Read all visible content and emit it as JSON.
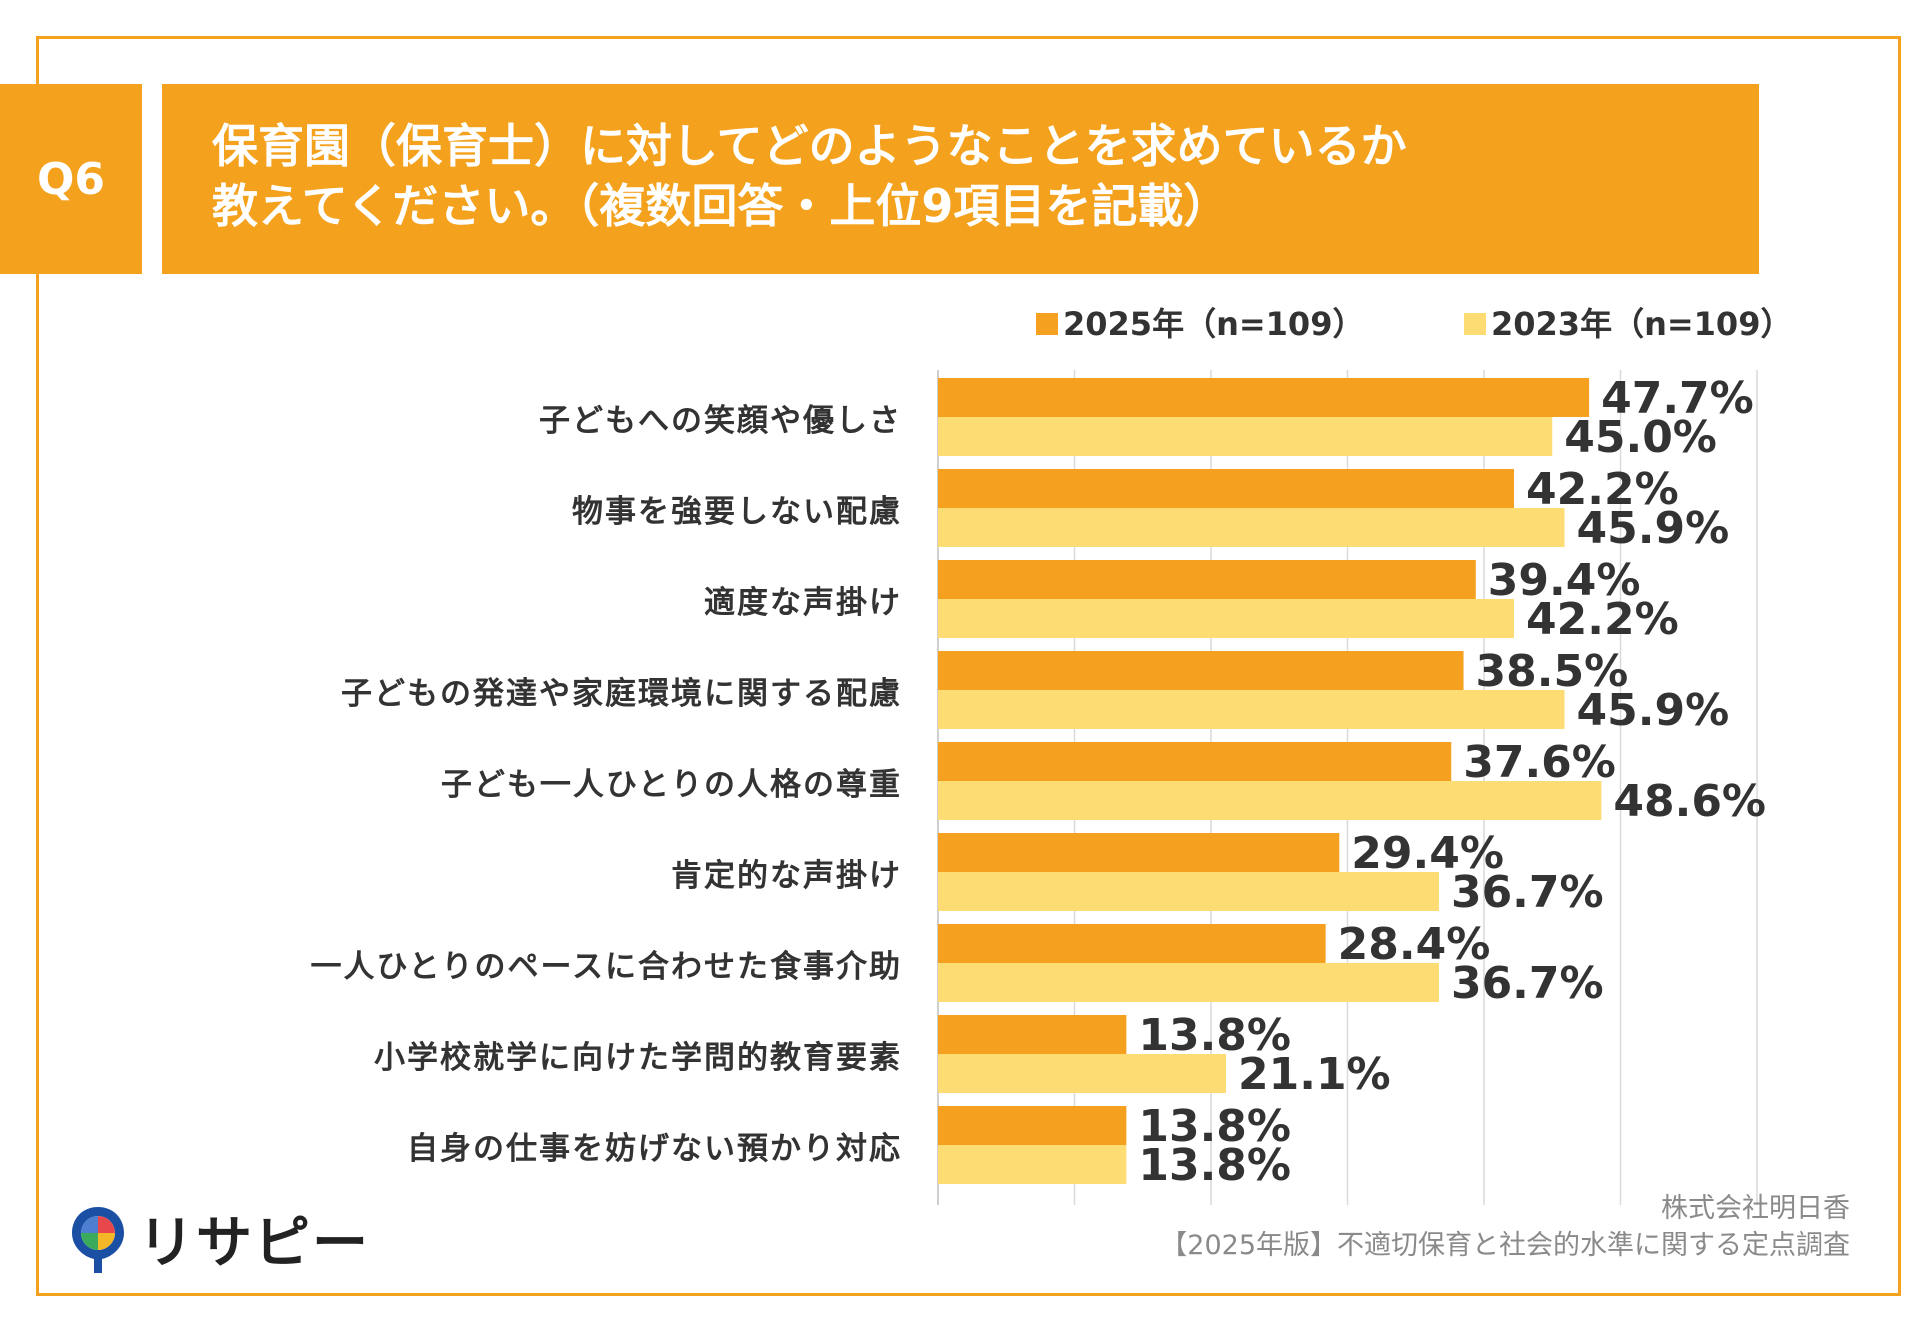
{
  "header": {
    "q_label": "Q6",
    "title_line1": "保育園（保育士）に対してどのようなことを求めているか",
    "title_line2": "教えてください。（複数回答・上位9項目を記載）"
  },
  "colors": {
    "accent": "#F4A21E",
    "series_2025": "#F5A11F",
    "series_2023": "#FDDD73",
    "grid": "#d9d9d9"
  },
  "chart_data": {
    "type": "bar",
    "orientation": "horizontal",
    "title": "保育園（保育士）に対してどのようなことを求めているか教えてください。（複数回答・上位9項目を記載）",
    "categories": [
      "子どもへの笑顔や優しさ",
      "物事を強要しない配慮",
      "適度な声掛け",
      "子どもの発達や家庭環境に関する配慮",
      "子ども一人ひとりの人格の尊重",
      "肯定的な声掛け",
      "一人ひとりのペースに合わせた食事介助",
      "小学校就学に向けた学問的教育要素",
      "自身の仕事を妨げない預かり対応"
    ],
    "series": [
      {
        "name": "2025年（n=109）",
        "values": [
          47.7,
          42.2,
          39.4,
          38.5,
          37.6,
          29.4,
          28.4,
          13.8,
          13.8
        ],
        "labels": [
          "47.7%",
          "42.2%",
          "39.4%",
          "38.5%",
          "37.6%",
          "29.4%",
          "28.4%",
          "13.8%",
          "13.8%"
        ]
      },
      {
        "name": "2023年（n=109）",
        "values": [
          45.0,
          45.9,
          42.2,
          45.9,
          48.6,
          36.7,
          36.7,
          21.1,
          13.8
        ],
        "labels": [
          "45.0%",
          "45.9%",
          "42.2%",
          "45.9%",
          "48.6%",
          "36.7%",
          "36.7%",
          "21.1%",
          "13.8%"
        ]
      }
    ],
    "xlim": [
      0,
      60
    ],
    "grid": true,
    "legend": "top-right"
  },
  "footer": {
    "source_line1": "株式会社明日香",
    "source_line2": "【2025年版】不適切保育と社会的水準に関する定点調査",
    "logo_text": "リサピー"
  }
}
